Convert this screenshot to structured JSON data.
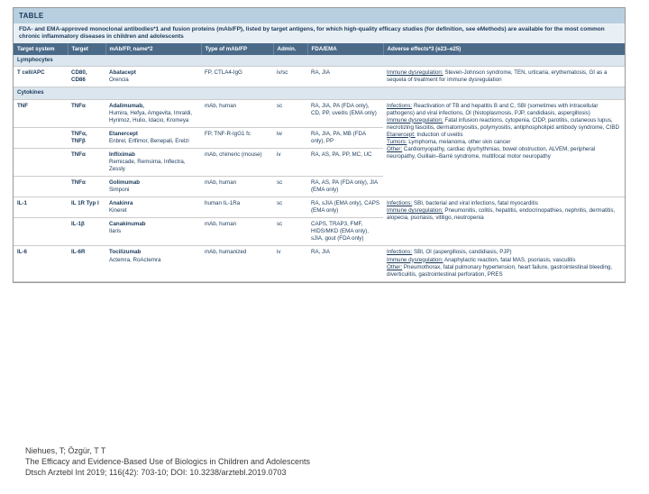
{
  "tableTag": "TABLE",
  "description": "FDA- and EMA-approved monoclonal antibodies*1 and fusion proteins (mAb/FP), listed by target antigens, for which high-quality efficacy studies (for definition, see eMethods) are available for the most common chronic inflammatory diseases in children and adolescents",
  "columns": [
    "Target system",
    "Target",
    "mAb/FP, name*2",
    "Type of mAb/FP",
    "Admin.",
    "FDA/EMA",
    "Adverse effects*3 (e23–e25)"
  ],
  "sections": [
    {
      "title": "Lymphocytes",
      "rows": [
        {
          "c1": "T cell/APC",
          "c2": "CD80, CD86",
          "c3": "<b>Abatacept</b><br>Orencia",
          "c4": "FP, CTLA4-IgG",
          "c5": "iv/sc",
          "c6": "RA, JIA",
          "c7": "<u>Immune dysregulation:</u> Steven-Johnson syndrome, TEN, urticaria, erythematosis, GI as a sequela of treatment for immune dysregulation"
        }
      ]
    },
    {
      "title": "Cytokines",
      "rows": [
        {
          "c1": "TNF",
          "c2": "TNFα",
          "c3": "<b>Adalimumab,</b><br>Humira, Hefya, Amgevita, Imraldi, Hyrimoz, Hulio, Idacio, Kromeya",
          "c4": "mAb, human",
          "c5": "sc",
          "c6": "RA, JIA, PA (FDA only), CD, PP, uveitis (EMA only)",
          "c7": "<u>Infections:</u> Reactivation of TB and hepatitis B and C, SBI (sometimes with intracellular pathogens) and viral infections, OI (histoplasmosis, PJP, candidiasis, aspergillosis)<br><u>Immune dysregulation:</u> Fatal infusion reactions, cytopenia, CIDP, parotitis, cutaneous lupus, necrotizing fasciitis, dermatomyositis, polymyositis, antiphospholipid antibody syndrome, CIBD<br><u>Etanercept:</u> Induction of uveitis<br><u>Tumors:</u> Lymphoma, melanoma, other skin cancer<br><u>Other:</u> Cardiomyopathy, cardiac dysrhythmias, bowel obstruction, ALVEM, peripheral neuropathy, Guillain–Barré syndrome, multifocal motor neuropathy"
        },
        {
          "c1": "",
          "c2": "TNFα, TNFβ",
          "c3": "<b>Etanercept</b><br>Enbrel, Erlfimor, Benepali, Erelzi",
          "c4": "FP, TNF-R-IgG1 fc",
          "c5": "iw",
          "c6": "RA, JIA, PA, MB (FDA only), PP",
          "c7": ""
        },
        {
          "c1": "",
          "c2": "TNFα",
          "c3": "<b>Infliximab</b><br>Remicade, Remsima, Inflectra, Zessly",
          "c4": "mAb, chimeric (mouse)",
          "c5": "iv",
          "c6": "RA, AS, PA, PP, MC, UC",
          "c7": ""
        },
        {
          "c1": "",
          "c2": "TNFα",
          "c3": "<b>Golimumab</b><br>Simponi",
          "c4": "mAb, human",
          "c5": "sc",
          "c6": "RA, AS, PA (FDA only), JIA (EMA only)",
          "c7": ""
        },
        {
          "c1": "IL-1",
          "c2": "IL 1R Typ I",
          "c3": "<b>Anakinra</b><br>Kineret",
          "c4": "human IL-1Ra",
          "c5": "sc",
          "c6": "RA, sJIA (EMA only), CAPS (EMA only)",
          "c7": "<u>Infections:</u> SBI, bacterial and viral infections, fatal myocarditis<br><u>Immune dysregulation:</u> Pneumonitis, colitis, hepatitis, endocrinopathies, nephritis, dermatitis, alopecia, psoriasis, vitiligo, neutropenia"
        },
        {
          "c1": "",
          "c2": "IL-1β",
          "c3": "<b>Canakinumab</b><br>Ilaris",
          "c4": "mAb, human",
          "c5": "sc",
          "c6": "CAPS, TRAP3, FMF, HIDS/MKD (EMA only), sJIA, gout (FDA only)",
          "c7": ""
        },
        {
          "c1": "IL-6",
          "c2": "IL-6R",
          "c3": "<b>Tocilizumab</b><br>Actemra, RoActemra",
          "c4": "mAb, humanized",
          "c5": "iv",
          "c6": "RA, JIA",
          "c7": "<u>Infections:</u> SBI, OI (aspergillosis, candidiasis, PJP)<br><u>Immune dysregulation:</u> Anaphylactic reaction, fatal MAS, psoriasis, vasculitis<br><u>Other:</u> Pneumothorax, fatal pulmonary hypertension, heart failure, gastrointestinal bleeding, diverticulitis, gastrointestinal perforation, PRES"
        }
      ]
    }
  ],
  "citation": {
    "l1": "Niehues, T; Özgür, T T",
    "l2": "The Efficacy and Evidence-Based Use of Biologics in Children and Adolescents",
    "l3": "Dtsch Arztebl Int 2019; 116(42): 703-10; DOI: 10.3238/arztebl.2019.0703"
  }
}
